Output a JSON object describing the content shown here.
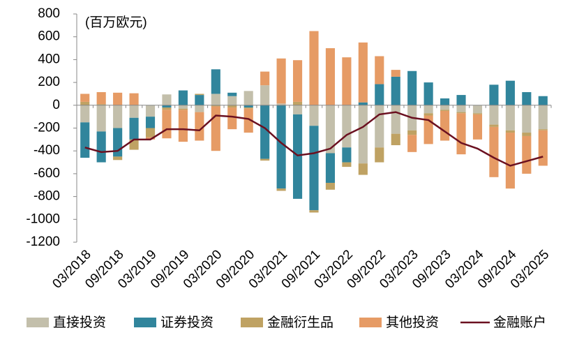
{
  "chart_data": {
    "type": "bar",
    "unit_label": "(百万欧元)",
    "categories": [
      "03/2018",
      null,
      "09/2018",
      null,
      "03/2019",
      null,
      "09/2019",
      null,
      "03/2020",
      null,
      "09/2020",
      null,
      "03/2021",
      null,
      "09/2021",
      null,
      "03/2022",
      null,
      "09/2022",
      null,
      "03/2023",
      null,
      "09/2023",
      null,
      "03/2024",
      null,
      "09/2024",
      null,
      "03/2025"
    ],
    "stacked": true,
    "series": [
      {
        "name": "直接投资",
        "color": "#c3bfab",
        "values": [
          -150,
          -230,
          -200,
          -110,
          -100,
          95,
          -30,
          -60,
          100,
          80,
          125,
          175,
          15,
          -80,
          -180,
          -420,
          -370,
          -510,
          -370,
          -250,
          -220,
          -70,
          -40,
          -60,
          -70,
          -170,
          -220,
          -240,
          -210
        ]
      },
      {
        "name": "证券投资",
        "color": "#31859c",
        "values": [
          -310,
          -270,
          -250,
          -190,
          -100,
          -20,
          130,
          90,
          215,
          30,
          -20,
          -470,
          -730,
          -740,
          -740,
          -260,
          -130,
          25,
          185,
          250,
          300,
          200,
          60,
          90,
          0,
          180,
          215,
          115,
          80
        ]
      },
      {
        "name": "金融衍生品",
        "color": "#bfa263",
        "values": [
          30,
          10,
          -30,
          -90,
          -80,
          -20,
          -10,
          10,
          -10,
          -20,
          -10,
          -15,
          -20,
          30,
          -20,
          -60,
          -40,
          -100,
          -130,
          -100,
          -40,
          -20,
          -10,
          -10,
          -10,
          -20,
          -20,
          -30,
          -10
        ]
      },
      {
        "name": "其他投资",
        "color": "#e69b65",
        "values": [
          70,
          105,
          110,
          105,
          -20,
          -250,
          -280,
          -250,
          -390,
          -190,
          -210,
          120,
          395,
          365,
          650,
          500,
          420,
          525,
          245,
          60,
          -150,
          -250,
          -260,
          -360,
          -220,
          -440,
          -490,
          -330,
          -310
        ]
      }
    ],
    "line_series": {
      "name": "金融账户",
      "color": "#6b1020",
      "values": [
        -370,
        -410,
        -400,
        -300,
        -300,
        -210,
        -210,
        -220,
        -90,
        -100,
        -120,
        -200,
        -330,
        -440,
        -420,
        -380,
        -260,
        -190,
        -80,
        -60,
        -110,
        -130,
        -230,
        -330,
        -380,
        -460,
        -530,
        -490,
        -450
      ]
    },
    "ylim": [
      -1200,
      800
    ],
    "yticks": [
      -1200,
      -1000,
      -800,
      -600,
      -400,
      -200,
      0,
      200,
      400,
      600,
      800
    ]
  }
}
